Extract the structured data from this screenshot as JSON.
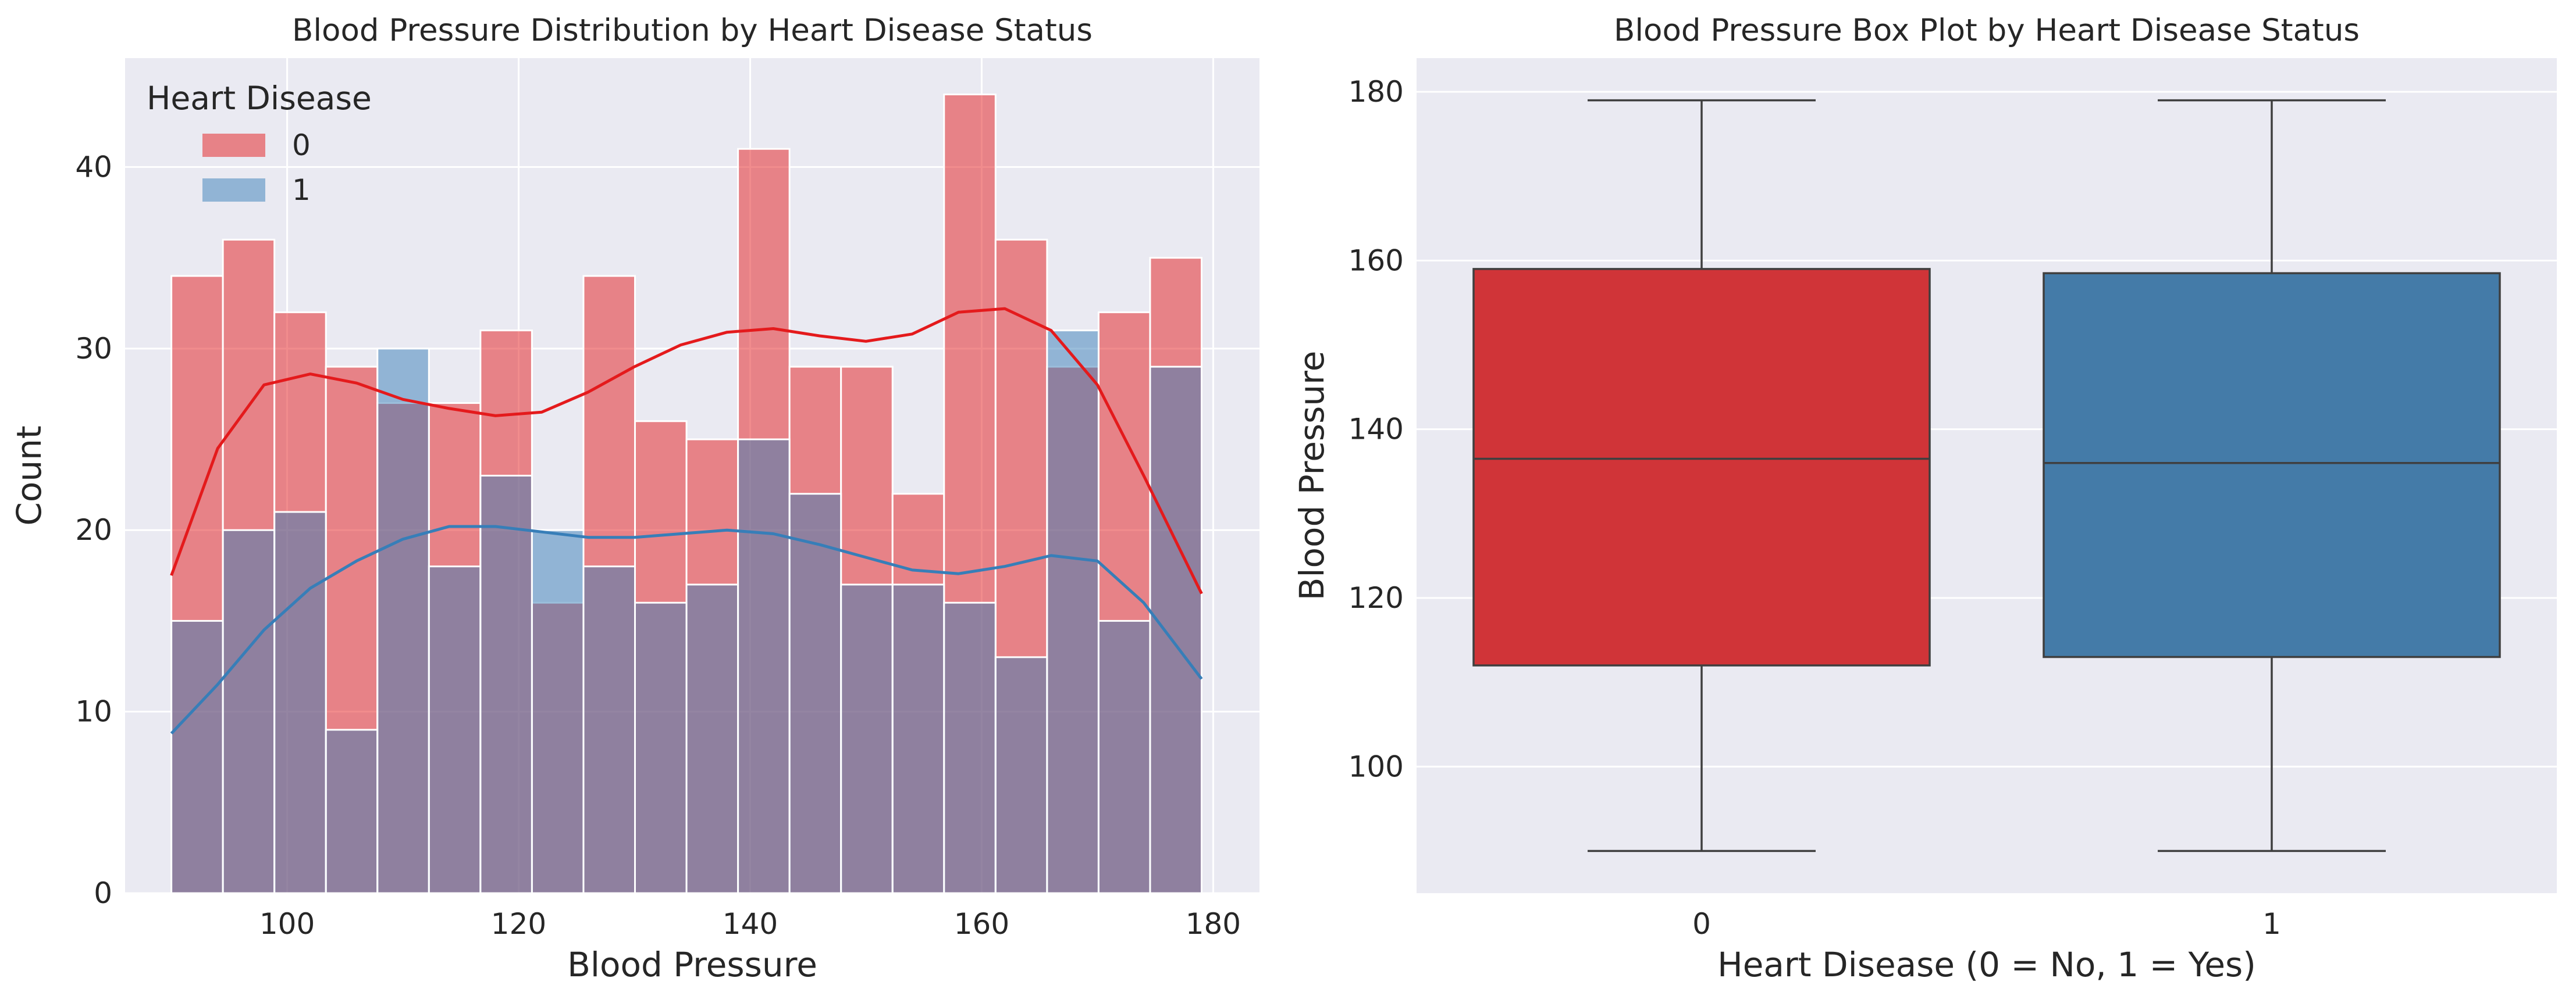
{
  "chart_data": [
    {
      "type": "histogram",
      "title": "Blood Pressure Distribution by Heart Disease Status",
      "xlabel": "Blood Pressure",
      "ylabel": "Count",
      "xlim": [
        86,
        184
      ],
      "ylim": [
        0,
        46
      ],
      "xticks": [
        100,
        120,
        140,
        160,
        180
      ],
      "yticks": [
        0,
        10,
        20,
        30,
        40
      ],
      "grid": true,
      "legend": {
        "title": "Heart Disease",
        "placement": "top-left"
      },
      "bin_start": 90,
      "bin_width": 4.45,
      "series": [
        {
          "name": "0",
          "color": "#e41a1c",
          "counts": [
            34,
            36,
            32,
            29,
            27,
            27,
            31,
            16,
            34,
            26,
            25,
            41,
            29,
            29,
            22,
            44,
            36,
            29,
            32,
            35
          ],
          "kde": [
            [
              90,
              17.5
            ],
            [
              94,
              24.5
            ],
            [
              98,
              28.0
            ],
            [
              102,
              28.6
            ],
            [
              106,
              28.1
            ],
            [
              110,
              27.2
            ],
            [
              114,
              26.7
            ],
            [
              118,
              26.3
            ],
            [
              122,
              26.5
            ],
            [
              126,
              27.6
            ],
            [
              130,
              29.0
            ],
            [
              134,
              30.2
            ],
            [
              138,
              30.9
            ],
            [
              142,
              31.1
            ],
            [
              146,
              30.7
            ],
            [
              150,
              30.4
            ],
            [
              154,
              30.8
            ],
            [
              158,
              32.0
            ],
            [
              162,
              32.2
            ],
            [
              166,
              31.0
            ],
            [
              170,
              28.0
            ],
            [
              174,
              23.0
            ],
            [
              179,
              16.5
            ]
          ]
        },
        {
          "name": "1",
          "color": "#377eb8",
          "counts": [
            15,
            20,
            21,
            9,
            30,
            18,
            23,
            20,
            18,
            16,
            17,
            25,
            22,
            17,
            17,
            16,
            13,
            31,
            15,
            29
          ],
          "kde": [
            [
              90,
              8.8
            ],
            [
              94,
              11.5
            ],
            [
              98,
              14.5
            ],
            [
              102,
              16.8
            ],
            [
              106,
              18.3
            ],
            [
              110,
              19.5
            ],
            [
              114,
              20.2
            ],
            [
              118,
              20.2
            ],
            [
              122,
              19.9
            ],
            [
              126,
              19.6
            ],
            [
              130,
              19.6
            ],
            [
              134,
              19.8
            ],
            [
              138,
              20.0
            ],
            [
              142,
              19.8
            ],
            [
              146,
              19.2
            ],
            [
              150,
              18.5
            ],
            [
              154,
              17.8
            ],
            [
              158,
              17.6
            ],
            [
              162,
              18.0
            ],
            [
              166,
              18.6
            ],
            [
              170,
              18.3
            ],
            [
              174,
              16.0
            ],
            [
              179,
              11.8
            ]
          ]
        }
      ]
    },
    {
      "type": "box",
      "title": "Blood Pressure Box Plot by Heart Disease Status",
      "xlabel": "Heart Disease (0 = No, 1 = Yes)",
      "ylabel": "Blood Pressure",
      "ylim": [
        85,
        184
      ],
      "yticks": [
        100,
        120,
        140,
        160,
        180
      ],
      "grid": true,
      "categories": [
        "0",
        "1"
      ],
      "boxes": [
        {
          "category": "0",
          "color": "#d03438",
          "min": 90,
          "q1": 112,
          "median": 136.5,
          "q3": 159,
          "max": 179
        },
        {
          "category": "1",
          "color": "#447ba8",
          "min": 90,
          "q1": 113,
          "median": 136,
          "q3": 158.5,
          "max": 179
        }
      ]
    }
  ]
}
